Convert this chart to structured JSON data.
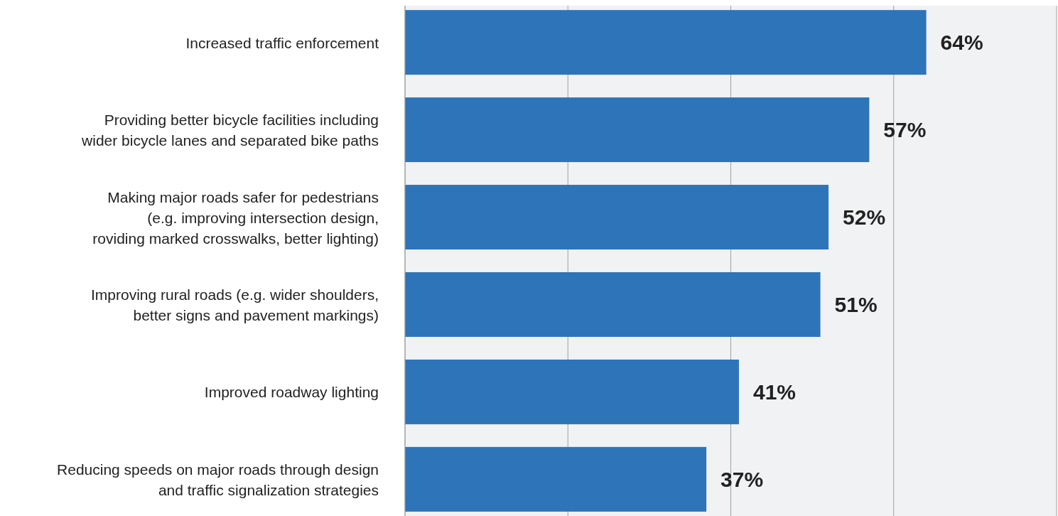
{
  "chart_data": {
    "type": "bar",
    "orientation": "horizontal",
    "categories": [
      "Increased traffic enforcement",
      "Providing better bicycle facilities including\nwider bicycle lanes and separated bike paths",
      "Making major roads safer for pedestrians\n(e.g. improving intersection design,\nroviding marked crosswalks, better lighting)",
      "Improving rural roads (e.g. wider shoulders,\nbetter signs and pavement markings)",
      "Improved roadway lighting",
      "Reducing speeds on major roads through design\nand traffic signalization strategies"
    ],
    "values": [
      64,
      57,
      52,
      51,
      41,
      37
    ],
    "value_labels": [
      "64%",
      "57%",
      "52%",
      "51%",
      "41%",
      "37%"
    ],
    "color": "#2e74b8",
    "xlim": [
      0,
      80
    ],
    "xticks": [
      {
        "value": 0,
        "label": null
      },
      {
        "value": 20,
        "label": null
      },
      {
        "value": 40,
        "label": null
      },
      {
        "value": 60,
        "label": null
      },
      {
        "value": 80,
        "label": null
      }
    ],
    "grid": "x",
    "tick_labels": "y"
  }
}
